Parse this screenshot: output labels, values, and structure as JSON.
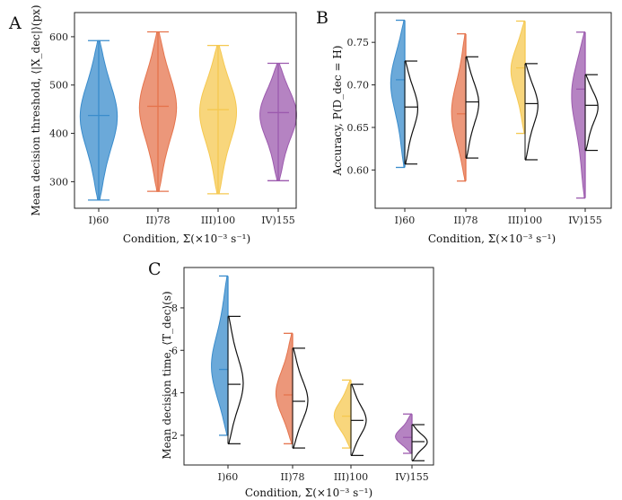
{
  "colors": [
    "#3a8ccc",
    "#e5744d",
    "#f5c850",
    "#9c5aae"
  ],
  "chart_data": [
    {
      "panel": "A",
      "type": "violin",
      "xlabel": "Condition, Σ(×10⁻³ s⁻¹)",
      "ylabel": "Mean decision threshold, ⟨|X_dec|⟩(px)",
      "categories": [
        "I)60",
        "II)78",
        "III)100",
        "IV)155"
      ],
      "ylim": [
        245,
        650
      ],
      "yticks": [
        300,
        400,
        500,
        600
      ],
      "series": [
        {
          "min": 262,
          "max": 592,
          "mean": 437
        },
        {
          "min": 280,
          "max": 610,
          "mean": 456
        },
        {
          "min": 275,
          "max": 582,
          "mean": 449
        },
        {
          "min": 302,
          "max": 545,
          "mean": 443
        }
      ]
    },
    {
      "panel": "B",
      "type": "split-violin",
      "xlabel": "Condition, Σ(×10⁻³ s⁻¹)",
      "ylabel": "Accuracy, P(D_dec = H)",
      "categories": [
        "I)60",
        "II)78",
        "III)100",
        "IV)155"
      ],
      "ylim": [
        0.555,
        0.785
      ],
      "yticks": [
        0.6,
        0.65,
        0.7,
        0.75
      ],
      "series": [
        {
          "min": 0.603,
          "max": 0.776,
          "mean": 0.706
        },
        {
          "min": 0.587,
          "max": 0.76,
          "mean": 0.666
        },
        {
          "min": 0.643,
          "max": 0.775,
          "mean": 0.72
        },
        {
          "min": 0.567,
          "max": 0.762,
          "mean": 0.695
        }
      ],
      "model": [
        {
          "min": 0.607,
          "max": 0.728,
          "mean": 0.674
        },
        {
          "min": 0.614,
          "max": 0.733,
          "mean": 0.68
        },
        {
          "min": 0.612,
          "max": 0.725,
          "mean": 0.678
        },
        {
          "min": 0.623,
          "max": 0.712,
          "mean": 0.676
        }
      ]
    },
    {
      "panel": "C",
      "type": "split-violin",
      "xlabel": "Condition, Σ(×10⁻³ s⁻¹)",
      "ylabel": "Mean decision time, ⟨T_dec⟩(s)",
      "categories": [
        "I)60",
        "II)78",
        "III)100",
        "IV)155"
      ],
      "ylim": [
        0.6,
        9.9
      ],
      "yticks": [
        2,
        4,
        6,
        8
      ],
      "series": [
        {
          "min": 2.0,
          "max": 9.5,
          "mean": 5.1
        },
        {
          "min": 1.6,
          "max": 6.8,
          "mean": 3.9
        },
        {
          "min": 1.4,
          "max": 4.6,
          "mean": 2.9
        },
        {
          "min": 1.15,
          "max": 3.0,
          "mean": 1.9
        }
      ],
      "model": [
        {
          "min": 1.6,
          "max": 7.6,
          "mean": 4.4
        },
        {
          "min": 1.4,
          "max": 6.1,
          "mean": 3.6
        },
        {
          "min": 1.05,
          "max": 4.4,
          "mean": 2.7
        },
        {
          "min": 0.8,
          "max": 2.5,
          "mean": 1.7
        }
      ]
    }
  ]
}
